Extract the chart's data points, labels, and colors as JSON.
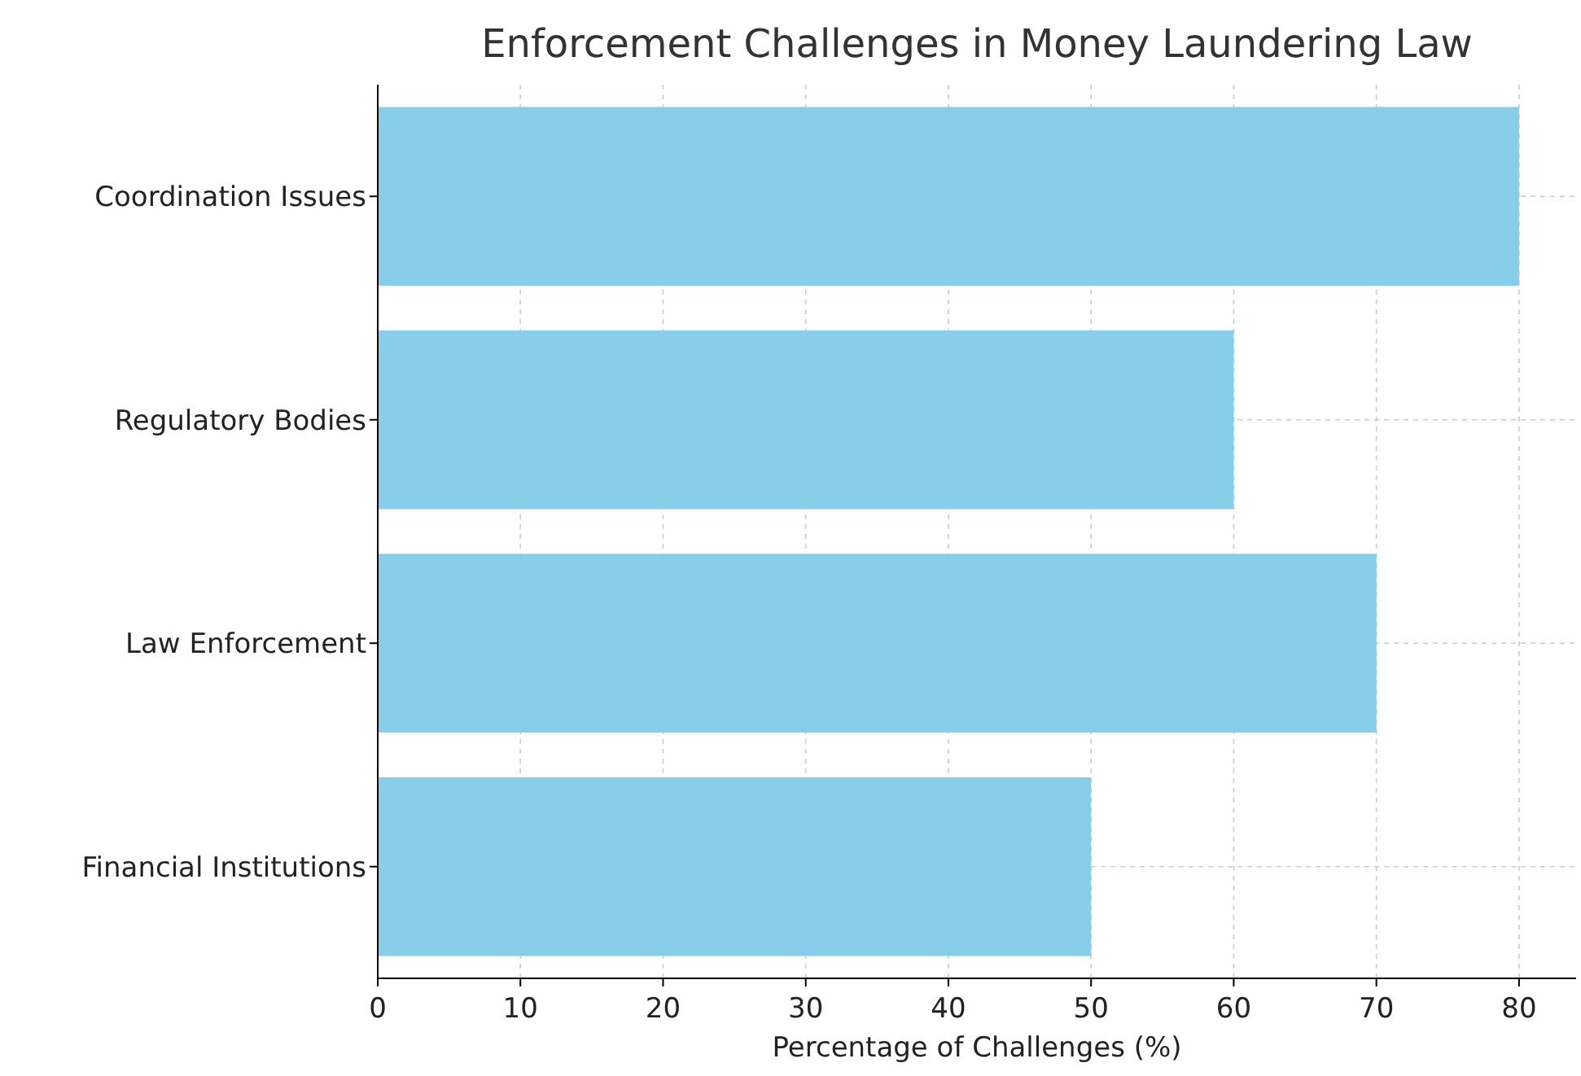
{
  "chart_data": {
    "type": "bar",
    "orientation": "horizontal",
    "title": "Enforcement Challenges in Money Laundering Law",
    "xlabel": "Percentage of Challenges (%)",
    "categories": [
      "Coordination Issues",
      "Regulatory Bodies",
      "Law Enforcement",
      "Financial Institutions"
    ],
    "values": [
      80,
      60,
      70,
      50
    ],
    "color": "#87ceeb",
    "xlim": [
      0,
      84
    ],
    "xticks": [
      0,
      10,
      20,
      30,
      40,
      50,
      60,
      70,
      80
    ],
    "grid": true
  }
}
